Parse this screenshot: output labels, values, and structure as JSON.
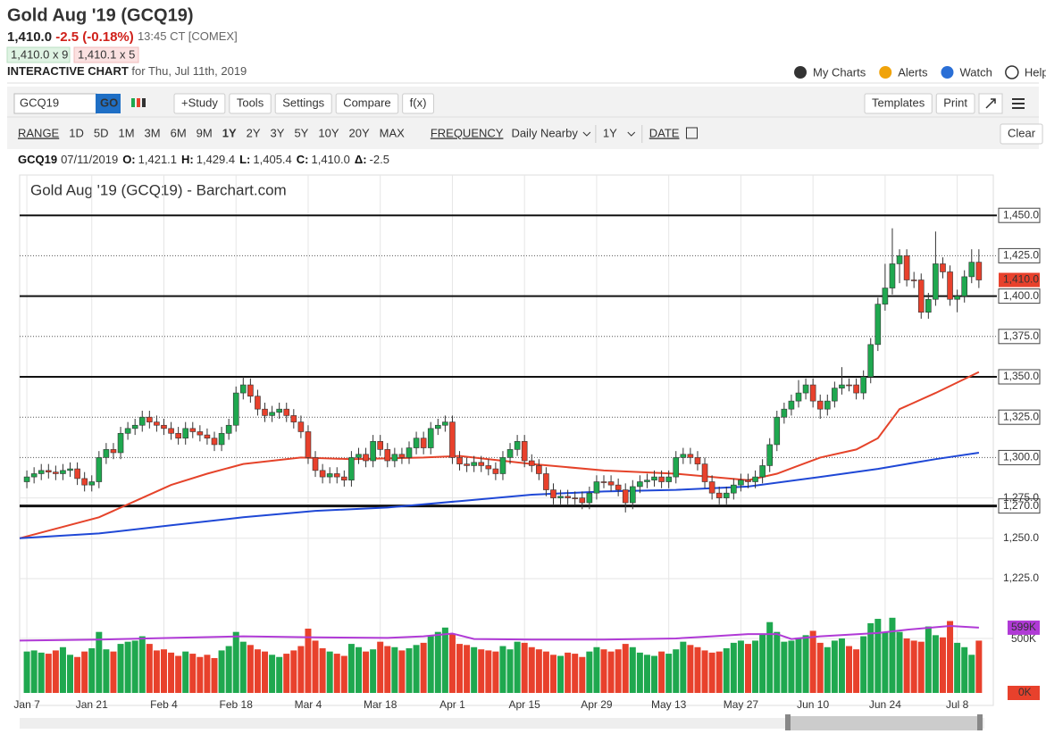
{
  "header": {
    "title": "Gold Aug '19 (GCQ19)",
    "last": "1,410.0",
    "change": "-2.5 (-0.18%)",
    "time": "13:45 CT [COMEX]",
    "bid": "1,410.0 x 9",
    "ask": "1,410.1 x 5",
    "chart_label": "INTERACTIVE CHART",
    "date_line": "for Thu, Jul 11th, 2019",
    "links": [
      "My Charts",
      "Alerts",
      "Watch",
      "Help"
    ]
  },
  "toolbar": {
    "symbol": "GCQ19",
    "go": "GO",
    "buttons": [
      "+Study",
      "Tools",
      "Settings",
      "Compare",
      "f(x)"
    ],
    "right_buttons": [
      "Templates",
      "Print"
    ]
  },
  "range_bar": {
    "range_label": "RANGE",
    "ranges": [
      "1D",
      "5D",
      "1M",
      "3M",
      "6M",
      "9M",
      "1Y",
      "2Y",
      "3Y",
      "5Y",
      "10Y",
      "20Y",
      "MAX"
    ],
    "selected": "1Y",
    "frequency_label": "FREQUENCY",
    "frequency": "Daily Nearby",
    "period": "1Y",
    "date_label": "DATE",
    "clear": "Clear"
  },
  "quote_line": {
    "symbol": "GCQ19",
    "date": "07/11/2019",
    "fields": [
      {
        "key": "O:",
        "value": "1,421.1"
      },
      {
        "key": "H:",
        "value": "1,429.4"
      },
      {
        "key": "L:",
        "value": "1,405.4"
      },
      {
        "key": "C:",
        "value": "1,410.0"
      },
      {
        "key": "Δ:",
        "value": "-2.5"
      }
    ]
  },
  "chart_data": {
    "type": "candlestick",
    "title": "Gold Aug '19 (GCQ19) - Barchart.com",
    "xlim": [
      -1,
      134
    ],
    "xticks": [
      {
        "value": 0,
        "label": "Jan 7"
      },
      {
        "value": 9,
        "label": "Jan 21"
      },
      {
        "value": 19,
        "label": "Feb 4"
      },
      {
        "value": 29,
        "label": "Feb 18"
      },
      {
        "value": 39,
        "label": "Mar 4"
      },
      {
        "value": 49,
        "label": "Mar 18"
      },
      {
        "value": 59,
        "label": "Apr 1"
      },
      {
        "value": 69,
        "label": "Apr 15"
      },
      {
        "value": 79,
        "label": "Apr 29"
      },
      {
        "value": 89,
        "label": "May 13"
      },
      {
        "value": 99,
        "label": "May 27"
      },
      {
        "value": 109,
        "label": "Jun 10"
      },
      {
        "value": 119,
        "label": "Jun 24"
      },
      {
        "value": 129,
        "label": "Jul 8"
      }
    ],
    "up_color": "#1fa84f",
    "down_color": "#e8412c",
    "open": [
      1285,
      1288,
      1290,
      1292,
      1291,
      1290,
      1292,
      1293,
      1287,
      1283,
      1285,
      1300,
      1305,
      1303,
      1315,
      1318,
      1320,
      1325,
      1322,
      1320,
      1318,
      1315,
      1312,
      1318,
      1316,
      1314,
      1312,
      1308,
      1315,
      1320,
      1340,
      1345,
      1338,
      1330,
      1326,
      1328,
      1330,
      1326,
      1322,
      1316,
      1300,
      1292,
      1288,
      1290,
      1288,
      1286,
      1300,
      1302,
      1298,
      1310,
      1305,
      1298,
      1302,
      1300,
      1306,
      1312,
      1306,
      1318,
      1320,
      1322,
      1300,
      1296,
      1295,
      1297,
      1295,
      1293,
      1290,
      1300,
      1305,
      1310,
      1298,
      1295,
      1290,
      1280,
      1275,
      1276,
      1275,
      1275,
      1272,
      1278,
      1285,
      1285,
      1283,
      1280,
      1272,
      1282,
      1285,
      1286,
      1288,
      1285,
      1288,
      1300,
      1302,
      1300,
      1296,
      1285,
      1278,
      1275,
      1278,
      1283,
      1286,
      1285,
      1288,
      1295,
      1308,
      1325,
      1330,
      1335,
      1340,
      1345,
      1335,
      1330,
      1335,
      1343,
      1345,
      1345,
      1340,
      1350,
      1370,
      1395,
      1405,
      1420,
      1425,
      1410,
      1410,
      1390,
      1398,
      1420,
      1415,
      1398,
      1400,
      1412,
      1421
    ],
    "high": [
      1292,
      1294,
      1296,
      1296,
      1295,
      1296,
      1297,
      1297,
      1291,
      1289,
      1304,
      1309,
      1309,
      1319,
      1322,
      1324,
      1329,
      1329,
      1326,
      1324,
      1322,
      1319,
      1322,
      1322,
      1320,
      1318,
      1316,
      1319,
      1324,
      1344,
      1350,
      1349,
      1342,
      1334,
      1332,
      1334,
      1334,
      1330,
      1326,
      1320,
      1304,
      1296,
      1294,
      1294,
      1292,
      1304,
      1306,
      1306,
      1314,
      1314,
      1309,
      1306,
      1306,
      1310,
      1316,
      1316,
      1322,
      1324,
      1326,
      1326,
      1304,
      1300,
      1301,
      1301,
      1299,
      1297,
      1304,
      1309,
      1314,
      1314,
      1302,
      1299,
      1294,
      1284,
      1280,
      1280,
      1279,
      1279,
      1282,
      1289,
      1289,
      1289,
      1287,
      1284,
      1286,
      1289,
      1290,
      1292,
      1292,
      1292,
      1304,
      1306,
      1306,
      1304,
      1300,
      1289,
      1282,
      1282,
      1287,
      1290,
      1290,
      1292,
      1299,
      1312,
      1329,
      1334,
      1339,
      1348,
      1349,
      1349,
      1339,
      1339,
      1347,
      1356,
      1349,
      1349,
      1354,
      1374,
      1399,
      1420,
      1442,
      1429,
      1429,
      1415,
      1414,
      1402,
      1440,
      1424,
      1419,
      1404,
      1416,
      1429,
      1429
    ],
    "low": [
      1281,
      1284,
      1286,
      1287,
      1286,
      1286,
      1288,
      1283,
      1279,
      1279,
      1281,
      1296,
      1299,
      1299,
      1311,
      1314,
      1316,
      1318,
      1316,
      1314,
      1311,
      1308,
      1308,
      1312,
      1310,
      1308,
      1304,
      1304,
      1311,
      1316,
      1336,
      1334,
      1326,
      1322,
      1322,
      1324,
      1322,
      1318,
      1312,
      1296,
      1288,
      1284,
      1284,
      1284,
      1282,
      1282,
      1296,
      1294,
      1294,
      1301,
      1294,
      1294,
      1296,
      1296,
      1302,
      1302,
      1302,
      1314,
      1316,
      1296,
      1292,
      1291,
      1291,
      1291,
      1289,
      1286,
      1286,
      1296,
      1301,
      1294,
      1291,
      1286,
      1276,
      1271,
      1271,
      1271,
      1271,
      1268,
      1268,
      1274,
      1281,
      1279,
      1276,
      1266,
      1268,
      1278,
      1281,
      1282,
      1281,
      1281,
      1284,
      1296,
      1296,
      1292,
      1281,
      1274,
      1271,
      1271,
      1274,
      1279,
      1281,
      1281,
      1284,
      1291,
      1304,
      1321,
      1326,
      1331,
      1336,
      1331,
      1324,
      1326,
      1331,
      1339,
      1341,
      1336,
      1336,
      1346,
      1366,
      1391,
      1401,
      1408,
      1406,
      1405,
      1386,
      1386,
      1394,
      1411,
      1394,
      1390,
      1396,
      1408,
      1405
    ],
    "close": [
      1288,
      1290,
      1292,
      1291,
      1290,
      1292,
      1293,
      1287,
      1283,
      1285,
      1300,
      1305,
      1303,
      1315,
      1318,
      1320,
      1325,
      1322,
      1320,
      1318,
      1315,
      1312,
      1318,
      1316,
      1314,
      1312,
      1308,
      1315,
      1320,
      1340,
      1345,
      1338,
      1330,
      1326,
      1328,
      1330,
      1326,
      1322,
      1316,
      1300,
      1292,
      1288,
      1290,
      1288,
      1286,
      1300,
      1302,
      1298,
      1310,
      1305,
      1298,
      1302,
      1300,
      1306,
      1312,
      1306,
      1318,
      1320,
      1322,
      1300,
      1296,
      1295,
      1297,
      1295,
      1293,
      1290,
      1300,
      1305,
      1310,
      1298,
      1295,
      1290,
      1280,
      1275,
      1276,
      1275,
      1275,
      1272,
      1278,
      1285,
      1285,
      1283,
      1280,
      1272,
      1282,
      1285,
      1286,
      1288,
      1285,
      1288,
      1300,
      1302,
      1300,
      1296,
      1285,
      1278,
      1275,
      1278,
      1283,
      1286,
      1285,
      1288,
      1295,
      1308,
      1325,
      1330,
      1335,
      1340,
      1345,
      1335,
      1330,
      1335,
      1343,
      1345,
      1345,
      1340,
      1350,
      1370,
      1395,
      1405,
      1420,
      1425,
      1410,
      1410,
      1390,
      1398,
      1420,
      1415,
      1398,
      1400,
      1412,
      1421,
      1410
    ],
    "ylim": [
      1225,
      1475
    ],
    "yticks": [
      {
        "value": 1225,
        "label": "1,225.0"
      },
      {
        "value": 1250,
        "label": "1,250.0"
      },
      {
        "value": 1270,
        "label": "1,270.0"
      },
      {
        "value": 1275,
        "label": "1,275.0"
      },
      {
        "value": 1300,
        "label": "1,300.0"
      },
      {
        "value": 1325,
        "label": "1,325.0"
      },
      {
        "value": 1350,
        "label": "1,350.0"
      },
      {
        "value": 1375,
        "label": "1,375.0"
      },
      {
        "value": 1400,
        "label": "1,400.0"
      },
      {
        "value": 1425,
        "label": "1,425.0"
      },
      {
        "value": 1450,
        "label": "1,450.0"
      }
    ],
    "grid": true,
    "levels_solid": [
      1450,
      1400,
      1350,
      1270
    ],
    "levels_dotted": [
      1425,
      1375,
      1325,
      1300
    ],
    "last_price": {
      "value": 1410,
      "label": "1,410.0",
      "color": "#e8412c"
    },
    "moving_averages": [
      {
        "color": "#e5432a",
        "x": [
          -1,
          10,
          16,
          20,
          25,
          30,
          38,
          45,
          55,
          60,
          70,
          80,
          90,
          100,
          104,
          110,
          115,
          118,
          121,
          126,
          132
        ],
        "values": [
          1250,
          1263,
          1275,
          1283,
          1290,
          1296,
          1300,
          1299,
          1300,
          1301,
          1296,
          1292,
          1290,
          1286,
          1290,
          1300,
          1305,
          1312,
          1330,
          1340,
          1353
        ]
      },
      {
        "color": "#1f48d6",
        "x": [
          -1,
          10,
          20,
          30,
          40,
          50,
          60,
          70,
          80,
          90,
          100,
          110,
          118,
          122,
          126,
          132
        ],
        "values": [
          1250,
          1253,
          1258,
          1263,
          1267,
          1269,
          1273,
          1277,
          1279,
          1280,
          1282,
          1288,
          1293,
          1296,
          1299,
          1303
        ]
      }
    ],
    "volume": {
      "values": [
        380,
        390,
        370,
        360,
        390,
        420,
        350,
        330,
        380,
        410,
        560,
        400,
        380,
        450,
        470,
        480,
        520,
        450,
        390,
        400,
        370,
        340,
        380,
        360,
        330,
        350,
        320,
        390,
        430,
        560,
        470,
        440,
        400,
        380,
        350,
        330,
        360,
        390,
        430,
        590,
        480,
        410,
        380,
        360,
        340,
        450,
        420,
        380,
        400,
        470,
        430,
        420,
        390,
        410,
        440,
        460,
        520,
        560,
        600,
        540,
        450,
        440,
        420,
        400,
        390,
        380,
        430,
        400,
        470,
        460,
        420,
        400,
        380,
        350,
        340,
        370,
        360,
        330,
        380,
        420,
        400,
        380,
        400,
        450,
        420,
        370,
        350,
        340,
        380,
        360,
        400,
        470,
        440,
        420,
        390,
        370,
        380,
        410,
        460,
        480,
        450,
        480,
        540,
        650,
        560,
        470,
        480,
        500,
        530,
        570,
        460,
        420,
        480,
        500,
        430,
        400,
        520,
        640,
        680,
        560,
        690,
        560,
        500,
        480,
        470,
        610,
        530,
        510,
        660,
        460,
        420,
        350,
        480
      ],
      "ylim": [
        0,
        1000
      ],
      "yticks": [
        {
          "value": 500,
          "label": "500K"
        }
      ],
      "avg": {
        "color": "#b03ad6",
        "x": [
          -1,
          10,
          20,
          30,
          40,
          50,
          55,
          59,
          62,
          70,
          80,
          90,
          95,
          100,
          104,
          106,
          110,
          118,
          122,
          128,
          132
        ],
        "values": [
          480,
          490,
          505,
          520,
          510,
          505,
          520,
          545,
          495,
          490,
          490,
          500,
          520,
          540,
          540,
          495,
          520,
          550,
          580,
          615,
          599
        ]
      },
      "avg_label": {
        "value": 599,
        "label": "599K"
      },
      "last_volume": {
        "value": 0,
        "label": "0K",
        "color": "#e8412c"
      }
    }
  }
}
